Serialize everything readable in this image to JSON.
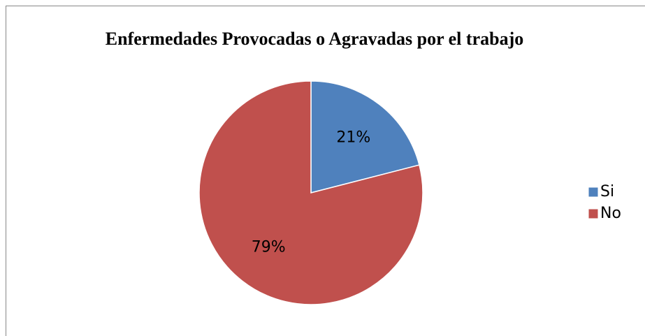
{
  "chart_data": {
    "type": "pie",
    "title": "Enfermedades Provocadas o Agravadas por el trabajo",
    "categories": [
      "Si",
      "No"
    ],
    "values": [
      21,
      79
    ],
    "value_labels": [
      "21%",
      "79%"
    ],
    "colors": [
      "#4f81bd",
      "#c0504d"
    ],
    "legend": "right"
  }
}
